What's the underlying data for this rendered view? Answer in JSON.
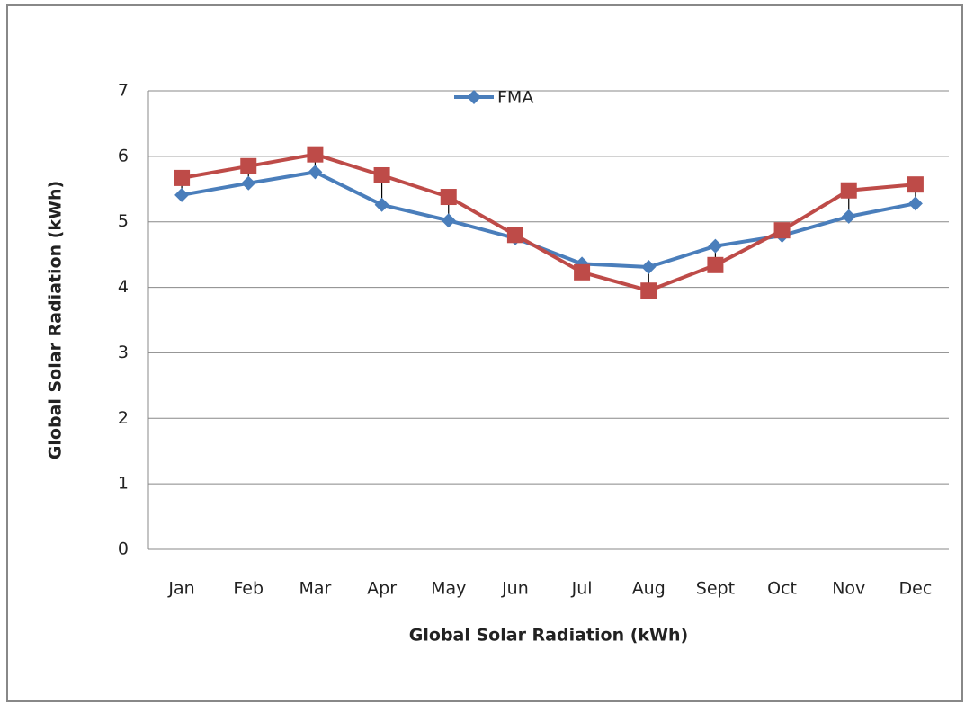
{
  "chart_data": {
    "type": "line",
    "x_label": "Global Solar Radiation (kWh)",
    "y_label": "Global Solar Radiation (kWh)",
    "categories": [
      "Jan",
      "Feb",
      "Mar",
      "Apr",
      "May",
      "Jun",
      "Jul",
      "Aug",
      "Sept",
      "Oct",
      "Nov",
      "Dec"
    ],
    "series": [
      {
        "name": "FMA",
        "color": "#4a7ebb",
        "marker": "diamond",
        "values": [
          5.41,
          5.59,
          5.76,
          5.26,
          5.02,
          4.75,
          4.36,
          4.31,
          4.63,
          4.79,
          5.08,
          5.28
        ]
      },
      {
        "color": "#be4b48",
        "marker": "square",
        "values": [
          5.67,
          5.85,
          6.03,
          5.71,
          5.38,
          4.8,
          4.23,
          3.95,
          4.34,
          4.87,
          5.48,
          5.57
        ]
      }
    ],
    "high_low_lines": true,
    "ylim": [
      0,
      7
    ],
    "yticks": [
      0,
      1,
      2,
      3,
      4,
      5,
      6,
      7
    ],
    "grid": true,
    "legend": "top"
  }
}
